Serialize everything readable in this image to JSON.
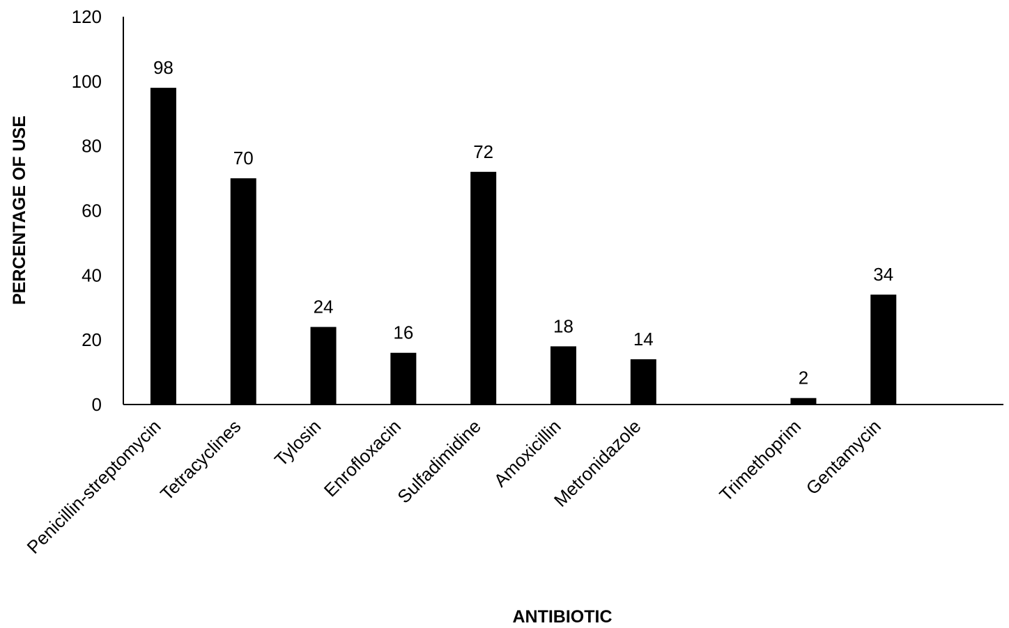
{
  "chart_data": {
    "type": "bar",
    "title": "",
    "xlabel": "ANTIBIOTIC",
    "ylabel": "PERCENTAGE OF USE",
    "ylim": [
      0,
      120
    ],
    "yticks": [
      0,
      20,
      40,
      60,
      80,
      100,
      120
    ],
    "yticks_text": [
      "0",
      "20",
      "40",
      "60",
      "80",
      "100",
      "120"
    ],
    "grid": false,
    "legend": "none",
    "categories": [
      "Penicillin-streptomycin",
      "Tetracyclines",
      "Tylosin",
      "Enrofloxacin",
      "Sulfadimidine",
      "Amoxicillin",
      "Metronidazole",
      "",
      "Trimethoprim",
      "Gentamycin",
      ""
    ],
    "values": [
      98,
      70,
      24,
      16,
      72,
      18,
      14,
      null,
      2,
      34,
      null
    ],
    "value_labels": [
      "98",
      "70",
      "24",
      "16",
      "72",
      "18",
      "14",
      "",
      "2",
      "34",
      ""
    ],
    "bar_color": "#000000",
    "axis_color": "#000000"
  }
}
